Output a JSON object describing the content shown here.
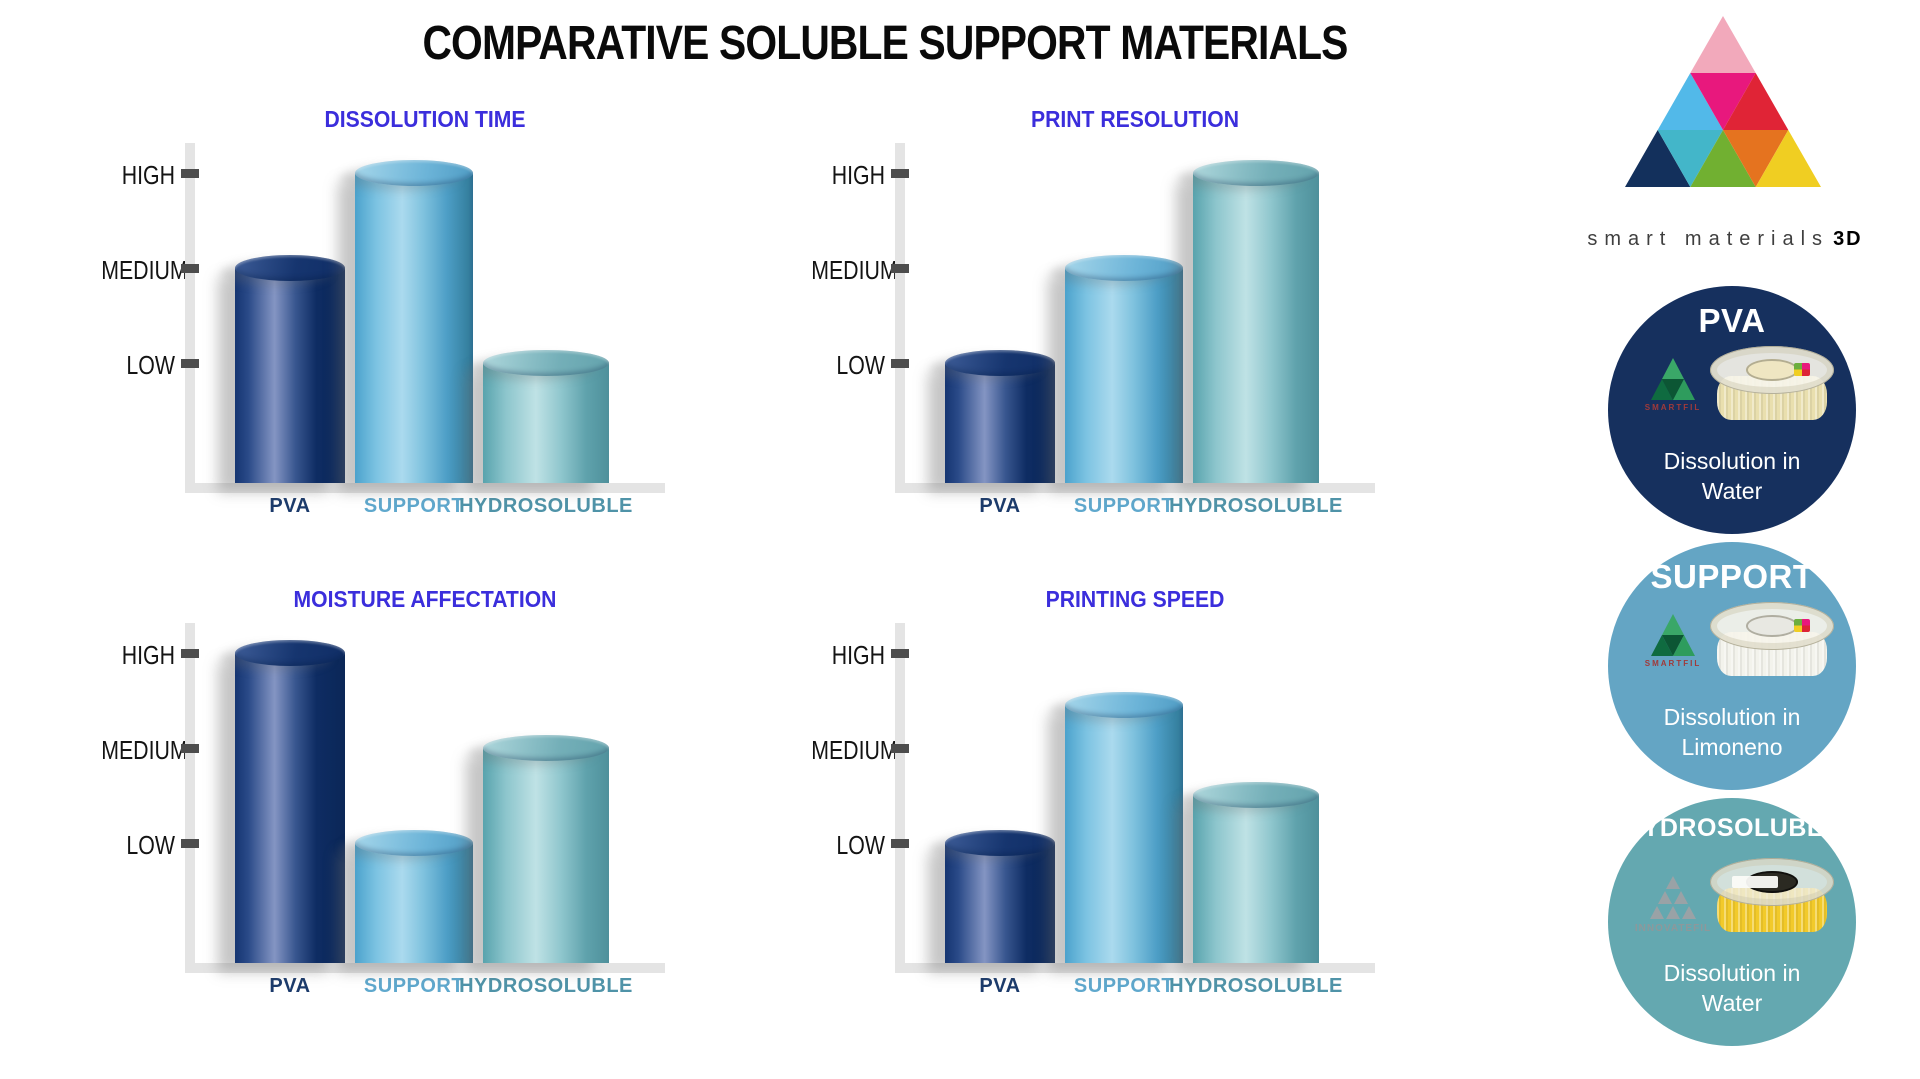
{
  "page_title": "COMPARATIVE SOLUBLE SUPPORT MATERIALS",
  "brand": {
    "text": "smart materials",
    "suffix": "3D",
    "logo_colors": [
      "#f2a9bb",
      "#52b9e9",
      "#e8187d",
      "#e02436",
      "#13305c",
      "#43b6c9",
      "#71b031",
      "#e5731f",
      "#f0ce22"
    ]
  },
  "colors": {
    "chart_title_blue": "#3b2edc",
    "axis_gray": "#e4e4e4",
    "tick_dark": "#4d4d4d",
    "bar_pva": "#16305e",
    "bar_support": "#5fa8cd",
    "bar_hydrosoluble": "#64a8b0",
    "badge_pva_bg": "#16305e",
    "badge_support_bg": "#64a5c4",
    "badge_hydrosoluble_bg": "#64a8b0"
  },
  "chart_data": [
    {
      "type": "bar",
      "title": "DISSOLUTION TIME",
      "categories": [
        "PVA",
        "SUPPORT",
        "HYDROSOLUBLE"
      ],
      "values": [
        2,
        3,
        1
      ],
      "levels": [
        "MEDIUM",
        "HIGH",
        "LOW"
      ],
      "yticks": [
        "HIGH",
        "MEDIUM",
        "LOW"
      ],
      "xlabel": "",
      "ylabel": "",
      "ylim": [
        0,
        3.3
      ],
      "grid": false,
      "legend": false
    },
    {
      "type": "bar",
      "title": "PRINT RESOLUTION",
      "categories": [
        "PVA",
        "SUPPORT",
        "HYDROSOLUBLE"
      ],
      "values": [
        1,
        2,
        3
      ],
      "levels": [
        "LOW",
        "MEDIUM",
        "HIGH"
      ],
      "yticks": [
        "HIGH",
        "MEDIUM",
        "LOW"
      ],
      "xlabel": "",
      "ylabel": "",
      "ylim": [
        0,
        3.3
      ],
      "grid": false,
      "legend": false
    },
    {
      "type": "bar",
      "title": "MOISTURE AFFECTATION",
      "categories": [
        "PVA",
        "SUPPORT",
        "HYDROSOLUBLE"
      ],
      "values": [
        3,
        1,
        2
      ],
      "levels": [
        "HIGH",
        "LOW",
        "MEDIUM"
      ],
      "yticks": [
        "HIGH",
        "MEDIUM",
        "LOW"
      ],
      "xlabel": "",
      "ylabel": "",
      "ylim": [
        0,
        3.3
      ],
      "grid": false,
      "legend": false
    },
    {
      "type": "bar",
      "title": "PRINTING SPEED",
      "categories": [
        "PVA",
        "SUPPORT",
        "HYDROSOLUBLE"
      ],
      "values": [
        1,
        2.45,
        1.5
      ],
      "levels": [
        "LOW",
        "MEDIUM-HIGH",
        "LOW-MEDIUM"
      ],
      "yticks": [
        "HIGH",
        "MEDIUM",
        "LOW"
      ],
      "xlabel": "",
      "ylabel": "",
      "ylim": [
        0,
        3.3
      ],
      "grid": false,
      "legend": false
    }
  ],
  "badges": [
    {
      "title": "PVA",
      "logo_text": "SMARTFIL",
      "caption_line1": "Dissolution in",
      "caption_line2": "Water"
    },
    {
      "title": "SUPPORT",
      "logo_text": "SMARTFIL",
      "caption_line1": "Dissolution in",
      "caption_line2": "Limoneno"
    },
    {
      "title": "HYDROSOLUBLE",
      "logo_text": "INNOVATEFIL",
      "caption_line1": "Dissolution in",
      "caption_line2": "Water"
    }
  ]
}
